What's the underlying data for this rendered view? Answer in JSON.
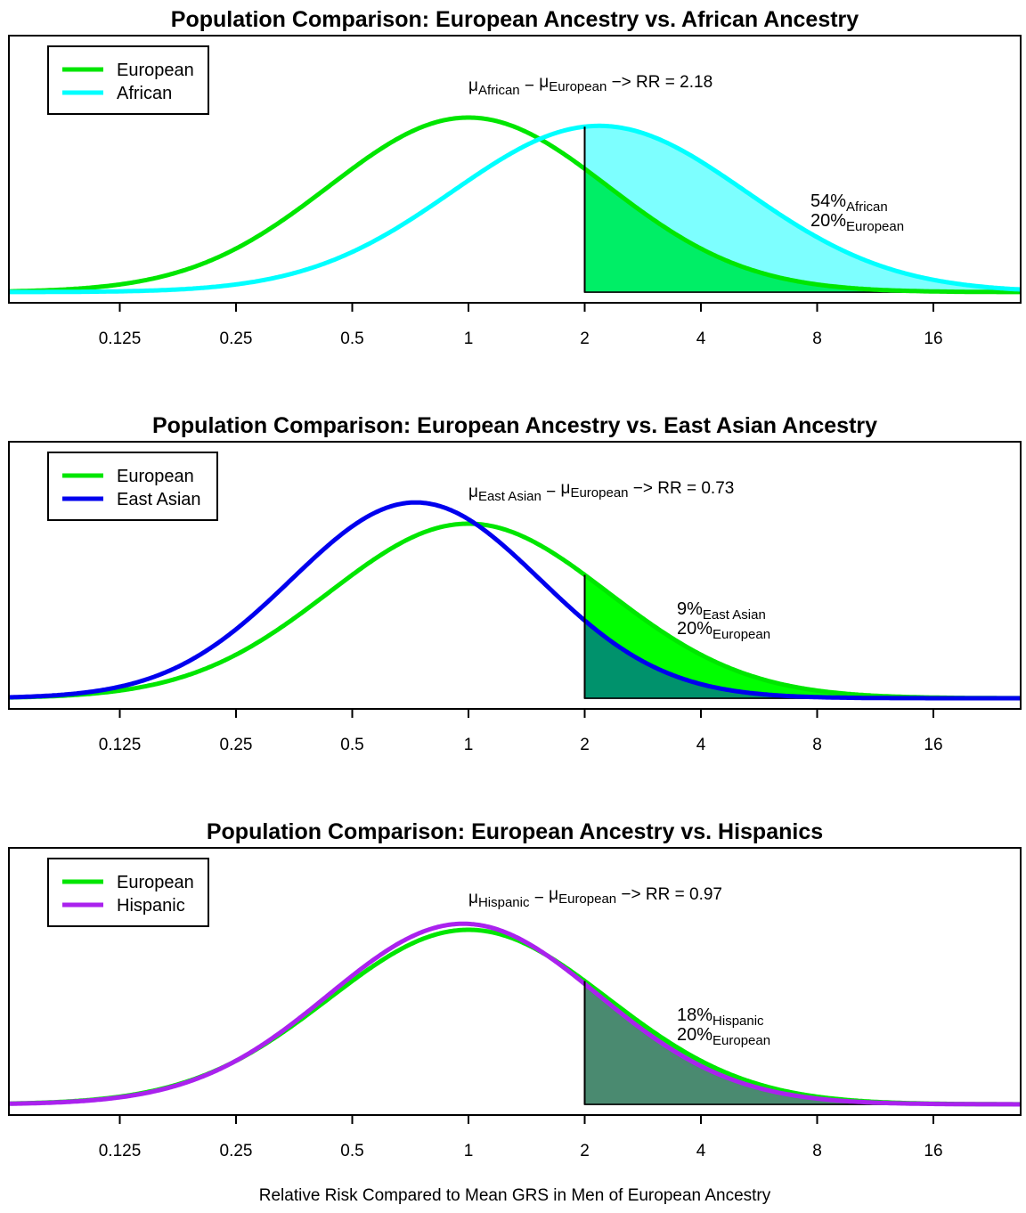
{
  "xlabel": "Relative Risk Compared to Mean GRS in Men of European Ancestry",
  "shared_x_ticks": [
    "0.125",
    "0.25",
    "0.5",
    "1",
    "2",
    "4",
    "8",
    "16"
  ],
  "chart_data": [
    {
      "type": "area",
      "title": "Population Comparison: European Ancestry vs. African Ancestry",
      "x_scale": "log2",
      "xlim": [
        0.047,
        24
      ],
      "x_ticks": [
        0.125,
        0.25,
        0.5,
        1,
        2,
        4,
        8,
        16
      ],
      "x_tick_labels": [
        "0.125",
        "0.25",
        "0.5",
        "1",
        "2",
        "4",
        "8",
        "16"
      ],
      "threshold_rr": 2,
      "legend_position": "top-left",
      "annotation": {
        "mu": "μ",
        "sub_a": "African",
        "minus": "−",
        "sub_b": "European",
        "rr_text": "−> RR = 2.18"
      },
      "percent_labels": [
        {
          "value": "54%",
          "group": "African"
        },
        {
          "value": "20%",
          "group": "European"
        }
      ],
      "series": [
        {
          "name": "European",
          "color": "#00e600",
          "fill": "#00ee66",
          "mean_rr": 1.0,
          "sd_log2": 1.2,
          "percent_above_threshold": 20
        },
        {
          "name": "African",
          "color": "#00ffff",
          "fill": "#66ffff",
          "mean_rr": 2.18,
          "sd_log2": 1.26,
          "percent_above_threshold": 54
        }
      ]
    },
    {
      "type": "area",
      "title": "Population Comparison: European Ancestry vs. East Asian Ancestry",
      "x_scale": "log2",
      "xlim": [
        0.047,
        24
      ],
      "x_ticks": [
        0.125,
        0.25,
        0.5,
        1,
        2,
        4,
        8,
        16
      ],
      "x_tick_labels": [
        "0.125",
        "0.25",
        "0.5",
        "1",
        "2",
        "4",
        "8",
        "16"
      ],
      "threshold_rr": 2,
      "legend_position": "top-left",
      "annotation": {
        "mu": "μ",
        "sub_a": "East Asian",
        "minus": "−",
        "sub_b": "European",
        "rr_text": "−> RR = 0.73"
      },
      "percent_labels": [
        {
          "value": "9%",
          "group": "East Asian"
        },
        {
          "value": "20%",
          "group": "European"
        }
      ],
      "series": [
        {
          "name": "European",
          "color": "#00e600",
          "fill": "#00ff00",
          "mean_rr": 1.0,
          "sd_log2": 1.2,
          "percent_above_threshold": 20
        },
        {
          "name": "East Asian",
          "color": "#0000ee",
          "fill": "#007f7f",
          "mean_rr": 0.73,
          "sd_log2": 1.07,
          "percent_above_threshold": 9
        }
      ]
    },
    {
      "type": "area",
      "title": "Population Comparison: European Ancestry vs. Hispanics",
      "x_scale": "log2",
      "xlim": [
        0.047,
        24
      ],
      "x_ticks": [
        0.125,
        0.25,
        0.5,
        1,
        2,
        4,
        8,
        16
      ],
      "x_tick_labels": [
        "0.125",
        "0.25",
        "0.5",
        "1",
        "2",
        "4",
        "8",
        "16"
      ],
      "threshold_rr": 2,
      "legend_position": "top-left",
      "annotation": {
        "mu": "μ",
        "sub_a": "Hispanic",
        "minus": "−",
        "sub_b": "European",
        "rr_text": "−> RR = 0.97"
      },
      "percent_labels": [
        {
          "value": "18%",
          "group": "Hispanic"
        },
        {
          "value": "20%",
          "group": "European"
        }
      ],
      "series": [
        {
          "name": "European",
          "color": "#00e600",
          "fill": "#4a9a7a",
          "mean_rr": 1.0,
          "sd_log2": 1.2,
          "percent_above_threshold": 20
        },
        {
          "name": "Hispanic",
          "color": "#aa22ee",
          "fill": "#4a8a70",
          "mean_rr": 0.97,
          "sd_log2": 1.16,
          "percent_above_threshold": 18
        }
      ]
    }
  ]
}
